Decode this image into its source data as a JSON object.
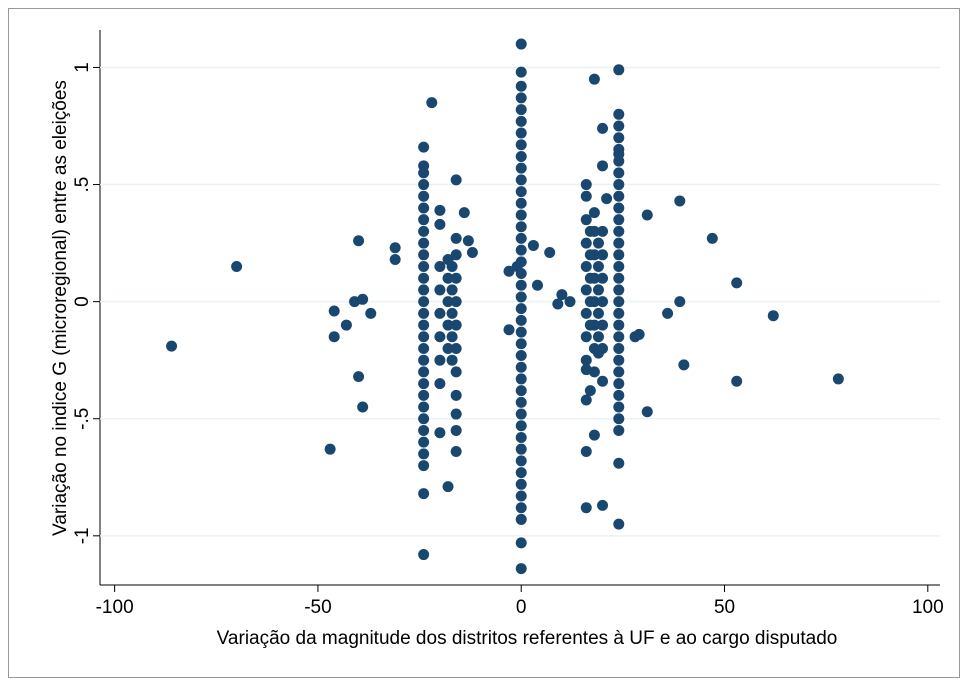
{
  "chart_data": {
    "type": "scatter",
    "x_label": "Variação da magnitude dos distritos referentes à UF e ao cargo disputado",
    "y_label": "Variação no indice G (microregional) entre as eleições",
    "xlim": [
      -103.6,
      103
    ],
    "ylim": [
      -1.21,
      1.16
    ],
    "xticks": [
      -100,
      -50,
      0,
      50,
      100
    ],
    "yticks": [
      -1,
      {
        "value": -0.5,
        "label": "-.5"
      },
      0,
      {
        "value": 0.5,
        "label": ".5"
      },
      1
    ],
    "grid": true,
    "series": [
      {
        "color": "#1a476f",
        "x": [
          0,
          0,
          0,
          0,
          0,
          0,
          0,
          0,
          0,
          0,
          0,
          0,
          0,
          0,
          0,
          0,
          0,
          0,
          0,
          0,
          0,
          0,
          0,
          0,
          0,
          0,
          0,
          0,
          0,
          0,
          0,
          0,
          0,
          0,
          0,
          0,
          0,
          0,
          0,
          0,
          0,
          0
        ],
        "values": [
          -0.93,
          -0.88,
          -0.83,
          -0.78,
          -0.73,
          -0.68,
          -0.63,
          -0.58,
          -0.53,
          -0.48,
          -0.43,
          -0.38,
          -0.33,
          -0.28,
          -0.23,
          -0.18,
          -0.13,
          -0.08,
          -0.03,
          0.02,
          0.07,
          0.12,
          0.17,
          0.22,
          0.27,
          0.32,
          0.37,
          0.42,
          0.47,
          0.52,
          0.57,
          0.62,
          0.67,
          0.72,
          0.77,
          0.82,
          0.87,
          0.92,
          0.98,
          1.1,
          -1.03,
          -1.14
        ]
      },
      {
        "color": "#1a476f",
        "x": [
          -24,
          -24,
          -24,
          -24,
          -24,
          -24,
          -24,
          -24,
          -24,
          -24,
          -24,
          -24,
          -24,
          -24,
          -24,
          -24,
          -24,
          -24,
          -24,
          -24,
          -24,
          -24,
          -24,
          -24,
          -24,
          -24,
          -24,
          -24,
          -24,
          -24
        ],
        "values": [
          -0.7,
          -0.65,
          -0.6,
          -0.55,
          -0.5,
          -0.45,
          -0.4,
          -0.35,
          -0.3,
          -0.25,
          -0.2,
          -0.15,
          -0.1,
          -0.05,
          0,
          0.05,
          0.1,
          0.15,
          0.2,
          0.25,
          0.3,
          0.35,
          0.4,
          0.45,
          0.5,
          0.55,
          0.58,
          0.66,
          -0.82,
          -1.08
        ]
      },
      {
        "color": "#1a476f",
        "x": [
          24,
          24,
          24,
          24,
          24,
          24,
          24,
          24,
          24,
          24,
          24,
          24,
          24,
          24,
          24,
          24,
          24,
          24,
          24,
          24,
          24,
          24,
          24,
          24,
          24,
          24,
          24,
          24,
          24,
          24,
          24
        ],
        "values": [
          -0.55,
          -0.5,
          -0.45,
          -0.4,
          -0.35,
          -0.3,
          -0.25,
          -0.2,
          -0.15,
          -0.1,
          -0.05,
          0,
          0.05,
          0.1,
          0.15,
          0.2,
          0.25,
          0.3,
          0.35,
          0.4,
          0.45,
          0.5,
          0.55,
          0.6,
          0.65,
          0.7,
          0.75,
          0.8,
          0.99,
          -0.69,
          -0.95
        ]
      },
      {
        "color": "#1a476f",
        "x": [
          -20,
          -20,
          -20,
          -20,
          -20,
          -20
        ],
        "values": [
          -0.35,
          -0.25,
          -0.15,
          -0.05,
          0.05,
          0.15
        ]
      },
      {
        "color": "#1a476f",
        "x": [
          -18,
          -18,
          -18,
          -18,
          -18
        ],
        "values": [
          -0.2,
          -0.1,
          0,
          0.1,
          0.18
        ]
      },
      {
        "color": "#1a476f",
        "x": [
          -17,
          -17,
          -17,
          -17,
          -17
        ],
        "values": [
          -0.25,
          -0.15,
          -0.05,
          0.05,
          0.15
        ]
      },
      {
        "color": "#1a476f",
        "x": [
          -16,
          -16,
          -16,
          -16,
          -16,
          -16,
          -16,
          -16,
          -16
        ],
        "values": [
          -0.55,
          -0.48,
          -0.4,
          -0.3,
          -0.2,
          -0.1,
          0,
          0.1,
          0.2
        ]
      },
      {
        "color": "#1a476f",
        "x": [
          16,
          16,
          16,
          16,
          16,
          16,
          16,
          16,
          16
        ],
        "values": [
          -0.42,
          -0.25,
          -0.15,
          -0.05,
          0.05,
          0.15,
          0.25,
          0.35,
          0.45
        ]
      },
      {
        "color": "#1a476f",
        "x": [
          17,
          17,
          17,
          17,
          17
        ],
        "values": [
          -0.1,
          0,
          0.1,
          0.2,
          0.3
        ]
      },
      {
        "color": "#1a476f",
        "x": [
          18,
          18,
          18,
          18,
          18,
          18,
          18,
          18
        ],
        "values": [
          -0.3,
          -0.2,
          -0.1,
          0,
          0.1,
          0.2,
          0.3,
          0.38
        ]
      },
      {
        "color": "#1a476f",
        "x": [
          19,
          19,
          19,
          19,
          19
        ],
        "values": [
          -0.15,
          -0.05,
          0.05,
          0.15,
          0.25
        ]
      },
      {
        "color": "#1a476f",
        "x": [
          20,
          20,
          20,
          20,
          20,
          20,
          20
        ],
        "values": [
          -0.34,
          -0.2,
          -0.1,
          0,
          0.1,
          0.2,
          0.3
        ]
      },
      {
        "color": "#1a476f",
        "x": [
          -86,
          -70,
          -47,
          -46,
          -46,
          -43,
          -41,
          -40,
          -40,
          -39,
          -39,
          -37,
          -31,
          -31,
          -22,
          -20,
          -20,
          -20,
          -18,
          -16,
          -16,
          -16,
          -14,
          -13,
          -12,
          -3,
          -3,
          -1,
          3,
          4,
          7,
          9,
          10,
          12,
          16,
          16,
          16,
          18,
          18,
          20,
          20,
          21,
          28,
          29,
          31,
          31,
          36,
          39,
          39,
          40,
          47,
          53,
          53,
          62,
          78,
          20,
          17,
          19,
          16,
          24
        ],
        "values": [
          -0.19,
          0.15,
          -0.63,
          -0.15,
          -0.04,
          -0.1,
          0,
          0.26,
          -0.32,
          -0.45,
          0.01,
          -0.05,
          0.23,
          0.18,
          0.85,
          0.39,
          0.33,
          -0.56,
          -0.79,
          0.52,
          -0.64,
          0.27,
          0.38,
          0.26,
          0.21,
          -0.12,
          0.13,
          0.15,
          0.24,
          0.07,
          0.21,
          -0.01,
          0.03,
          0,
          -0.88,
          -0.64,
          0.5,
          0.95,
          -0.57,
          -0.87,
          0.74,
          0.44,
          -0.15,
          -0.14,
          0.37,
          -0.47,
          -0.05,
          0.43,
          0,
          -0.27,
          0.27,
          0.08,
          -0.34,
          -0.06,
          -0.33,
          0.58,
          -0.38,
          -0.22,
          -0.29,
          0.63
        ]
      }
    ]
  }
}
